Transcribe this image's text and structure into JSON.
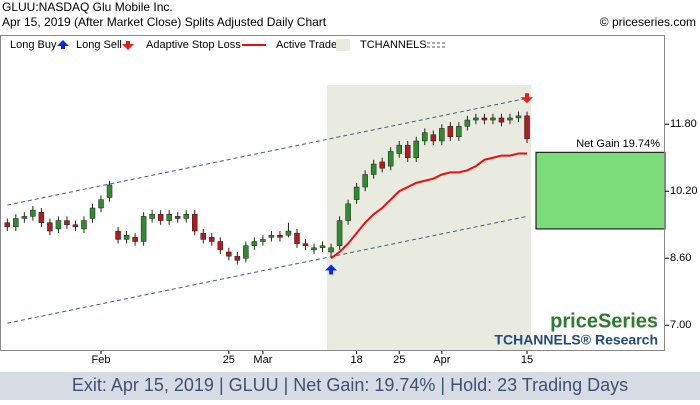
{
  "chart_data": {
    "type": "candlestick",
    "title": "GLUU:NASDAQ Glu Mobile Inc.",
    "subtitle": "Apr 15, 2019 (After Market Close)  Splits Adjusted Daily Chart",
    "source": "© priceseries.com",
    "brand": "priceSeries",
    "brand_sub": "TCHANNELS® Research",
    "footer": "Exit: Apr 15, 2019 | GLUU | Net Gain: 19.74% | Hold: 23 Trading Days",
    "categories": [
      null,
      null,
      null,
      null,
      null,
      null,
      null,
      null,
      null,
      null,
      null,
      "Feb",
      null,
      null,
      null,
      null,
      null,
      null,
      null,
      null,
      null,
      null,
      null,
      null,
      null,
      null,
      "25",
      null,
      null,
      null,
      "Mar",
      null,
      null,
      null,
      null,
      null,
      null,
      null,
      null,
      null,
      null,
      "18",
      null,
      null,
      null,
      null,
      "25",
      null,
      null,
      null,
      null,
      "Apr",
      null,
      null,
      null,
      null,
      null,
      null,
      null,
      null,
      null,
      "15"
    ],
    "candles": {
      "up_color": "#2e8b2e",
      "down_color": "#b01c1c",
      "open": [
        9.45,
        9.35,
        9.55,
        9.6,
        9.7,
        9.45,
        9.3,
        9.5,
        9.4,
        9.3,
        9.55,
        9.8,
        10.05,
        9.25,
        9.05,
        9.1,
        9.0,
        9.55,
        9.65,
        9.5,
        9.6,
        9.55,
        9.65,
        9.2,
        9.1,
        9.0,
        8.75,
        8.65,
        8.6,
        8.9,
        9.0,
        9.1,
        9.15,
        9.15,
        9.2,
        8.95,
        8.8,
        8.85,
        8.75,
        8.9,
        9.5,
        10.0,
        10.3,
        10.6,
        10.9,
        10.8,
        11.1,
        11.3,
        11.0,
        11.4,
        11.55,
        11.4,
        11.75,
        11.5,
        11.75,
        11.9,
        11.95,
        11.9,
        11.95,
        11.9,
        11.95,
        12.0
      ],
      "high": [
        9.55,
        9.65,
        9.7,
        9.85,
        9.8,
        9.55,
        9.6,
        9.6,
        9.5,
        9.6,
        9.9,
        10.1,
        10.45,
        9.35,
        9.25,
        9.2,
        9.7,
        9.75,
        9.75,
        9.75,
        9.7,
        9.75,
        9.75,
        9.3,
        9.2,
        9.1,
        8.85,
        8.75,
        9.0,
        9.1,
        9.15,
        9.25,
        9.25,
        9.45,
        9.3,
        9.05,
        8.95,
        9.0,
        8.95,
        9.6,
        10.0,
        10.4,
        10.7,
        10.95,
        11.0,
        11.25,
        11.4,
        11.4,
        11.5,
        11.7,
        11.65,
        11.8,
        11.85,
        11.85,
        12.0,
        12.05,
        12.05,
        12.05,
        12.05,
        12.05,
        12.1,
        12.1
      ],
      "low": [
        9.25,
        9.25,
        9.45,
        9.5,
        9.35,
        9.15,
        9.2,
        9.3,
        9.25,
        9.2,
        9.45,
        9.7,
        9.95,
        8.95,
        8.95,
        8.9,
        8.9,
        9.45,
        9.4,
        9.4,
        9.45,
        9.45,
        9.15,
        8.95,
        8.9,
        8.7,
        8.55,
        8.45,
        8.5,
        8.8,
        8.9,
        9.0,
        9.0,
        9.1,
        8.85,
        8.8,
        8.7,
        8.75,
        8.65,
        8.8,
        9.4,
        9.9,
        10.2,
        10.5,
        10.65,
        10.7,
        11.0,
        10.9,
        10.9,
        11.3,
        11.3,
        11.3,
        11.4,
        11.4,
        11.65,
        11.8,
        11.8,
        11.8,
        11.75,
        11.8,
        11.85,
        11.35
      ],
      "close": [
        9.35,
        9.55,
        9.6,
        9.75,
        9.45,
        9.25,
        9.5,
        9.4,
        9.35,
        9.5,
        9.8,
        10.0,
        10.35,
        9.05,
        9.15,
        9.0,
        9.6,
        9.65,
        9.5,
        9.65,
        9.55,
        9.65,
        9.25,
        9.05,
        9.0,
        8.8,
        8.65,
        8.55,
        8.9,
        9.0,
        9.05,
        9.15,
        9.1,
        9.25,
        8.95,
        8.9,
        8.85,
        8.9,
        8.85,
        9.5,
        9.9,
        10.3,
        10.6,
        10.85,
        10.75,
        11.15,
        11.3,
        11.0,
        11.4,
        11.6,
        11.4,
        11.7,
        11.5,
        11.75,
        11.9,
        11.95,
        11.9,
        11.95,
        11.85,
        11.95,
        12.0,
        11.45
      ]
    },
    "buy": {
      "name": "Long Buy",
      "color": "#0a2ae0",
      "values": [
        null,
        null,
        null,
        null,
        null,
        null,
        null,
        null,
        null,
        null,
        null,
        null,
        null,
        null,
        null,
        null,
        null,
        null,
        null,
        null,
        null,
        null,
        null,
        null,
        null,
        null,
        null,
        null,
        null,
        null,
        null,
        null,
        null,
        null,
        null,
        null,
        null,
        null,
        8.45,
        null,
        null,
        null,
        null,
        null,
        null,
        null,
        null,
        null,
        null,
        null,
        null,
        null,
        null,
        null,
        null,
        null,
        null,
        null,
        null,
        null,
        null,
        null
      ]
    },
    "sell": {
      "name": "Long Sell",
      "color": "#e02020",
      "values": [
        null,
        null,
        null,
        null,
        null,
        null,
        null,
        null,
        null,
        null,
        null,
        null,
        null,
        null,
        null,
        null,
        null,
        null,
        null,
        null,
        null,
        null,
        null,
        null,
        null,
        null,
        null,
        null,
        null,
        null,
        null,
        null,
        null,
        null,
        null,
        null,
        null,
        null,
        null,
        null,
        null,
        null,
        null,
        null,
        null,
        null,
        null,
        null,
        null,
        null,
        null,
        null,
        null,
        null,
        null,
        null,
        null,
        null,
        null,
        null,
        null,
        12.3
      ]
    },
    "stop_loss": {
      "name": "Adaptive Stop Loss",
      "color": "#e81010",
      "values": [
        null,
        null,
        null,
        null,
        null,
        null,
        null,
        null,
        null,
        null,
        null,
        null,
        null,
        null,
        null,
        null,
        null,
        null,
        null,
        null,
        null,
        null,
        null,
        null,
        null,
        null,
        null,
        null,
        null,
        null,
        null,
        null,
        null,
        null,
        null,
        null,
        null,
        null,
        8.6,
        8.75,
        8.95,
        9.2,
        9.45,
        9.65,
        9.8,
        10.0,
        10.2,
        10.3,
        10.4,
        10.45,
        10.5,
        10.6,
        10.65,
        10.65,
        10.7,
        10.8,
        10.95,
        11.0,
        11.05,
        11.05,
        11.1,
        11.1
      ]
    },
    "active_trade": {
      "name": "Active Trade",
      "color": "#e9ebe0"
    },
    "channels": {
      "name": "TCHANNELS",
      "color": "#4a5a7a",
      "upper": [
        9.87,
        12.42
      ],
      "lower": [
        7.05,
        9.6
      ]
    },
    "net_gain": {
      "label": "Net Gain 19.74%",
      "color": "#7ddc7a",
      "low": 9.3,
      "high": 11.13
    },
    "ylim": [
      6.41,
      13.93
    ],
    "yticks": [
      {
        "value": 7.0,
        "label": "7.00"
      },
      {
        "value": 8.6,
        "label": "8.60"
      },
      {
        "value": 10.2,
        "label": "10.20"
      },
      {
        "value": 11.8,
        "label": "11.80"
      }
    ]
  }
}
